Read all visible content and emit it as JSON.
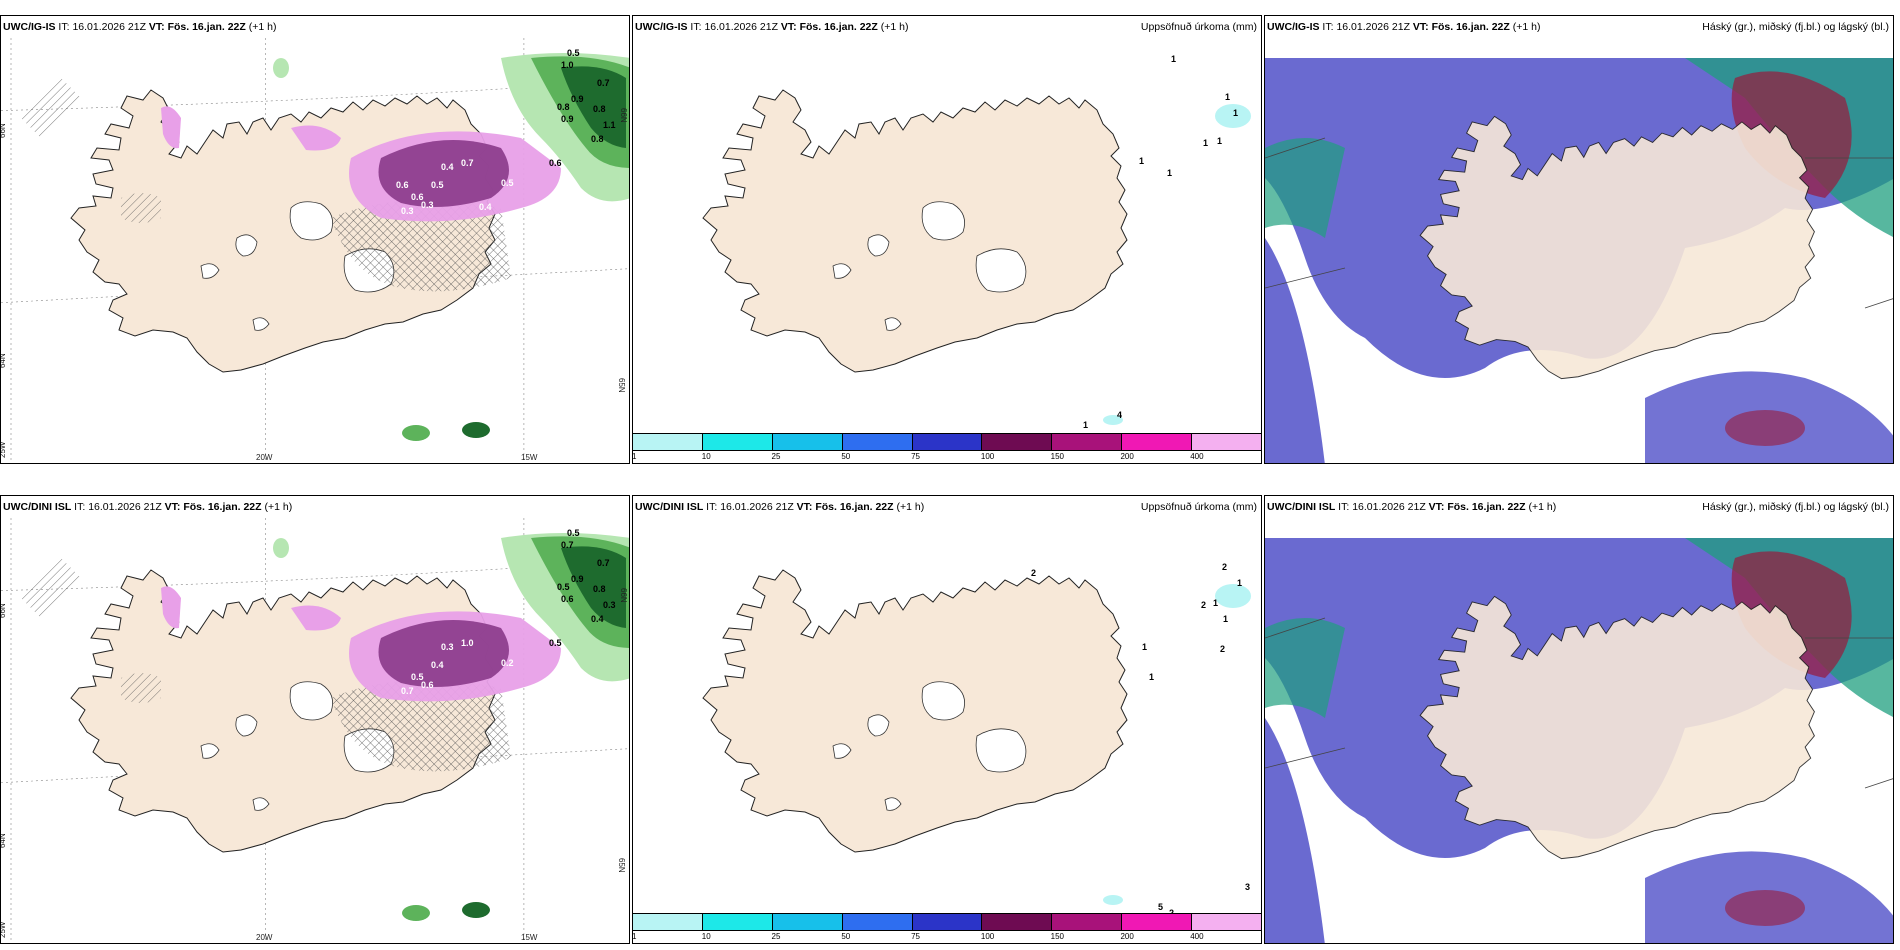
{
  "rows": [
    {
      "model": "UWC/IG-IS",
      "it_label": "IT:",
      "it_value": "16.01.2026 21Z",
      "vt_label": "VT:",
      "vt_value": "Fös. 16.jan. 22Z",
      "lead": "(+1 h)",
      "precip_title": "Uppsöfnuð úrkoma (mm)",
      "cloud_title": "Háský (gr.), miðský (fj.bl.) og lágský (bl.)",
      "lat_labels": [
        "66N",
        "64N",
        "65N",
        "66N"
      ],
      "lon_labels": [
        "25W",
        "20W",
        "15W"
      ],
      "snow_values": [
        "0.5",
        "1.0",
        "0.7",
        "0.9",
        "0.8",
        "0.8",
        "0.9",
        "1.1",
        "0.8",
        "0.6",
        "0.3",
        "0.5",
        "0.6",
        "0.4",
        "0.3",
        "0.7",
        "0.5",
        "0.4",
        "0.6"
      ],
      "precip_values": [
        "1",
        "1",
        "1",
        "1",
        "1",
        "1",
        "1",
        "1",
        "4"
      ]
    },
    {
      "model": "UWC/DINI ISL",
      "it_label": "IT:",
      "it_value": "16.01.2026 21Z",
      "vt_label": "VT:",
      "vt_value": "Fös. 16.jan. 22Z",
      "lead": "(+1 h)",
      "precip_title": "Uppsöfnuð úrkoma (mm)",
      "cloud_title": "Háský (gr.), miðský (fj.bl.) og lágský (bl.)",
      "lat_labels": [
        "66N",
        "64N",
        "65N",
        "66N"
      ],
      "lon_labels": [
        "25W",
        "20W",
        "15W"
      ],
      "snow_values": [
        "0.5",
        "0.7",
        "0.7",
        "0.9",
        "0.5",
        "0.8",
        "0.6",
        "0.3",
        "0.4",
        "0.5",
        "0.6",
        "0.4",
        "0.5",
        "0.3",
        "0.7",
        "1.0",
        "0.2"
      ],
      "precip_values": [
        "2",
        "2",
        "1",
        "1",
        "1",
        "2",
        "2",
        "1",
        "1",
        "3",
        "5",
        "2"
      ]
    }
  ],
  "colorbar": {
    "labels": [
      "1",
      "10",
      "25",
      "50",
      "75",
      "100",
      "150",
      "200",
      "400"
    ],
    "colors": [
      "#b8f4f4",
      "#1de8e8",
      "#17c0ea",
      "#2e6ef0",
      "#2b34c8",
      "#6e0b52",
      "#a8127a",
      "#f018b4",
      "#f4b0f0"
    ]
  },
  "colors": {
    "land": "#f7e8d8",
    "snowfall_light": "#e8a0e8",
    "snowfall_dark": "#8a3a8a",
    "precip_green": "#3aa04a",
    "cloud_high": "#9a1a3a",
    "cloud_mid": "#1f9f7f",
    "cloud_low": "#5050c8"
  }
}
